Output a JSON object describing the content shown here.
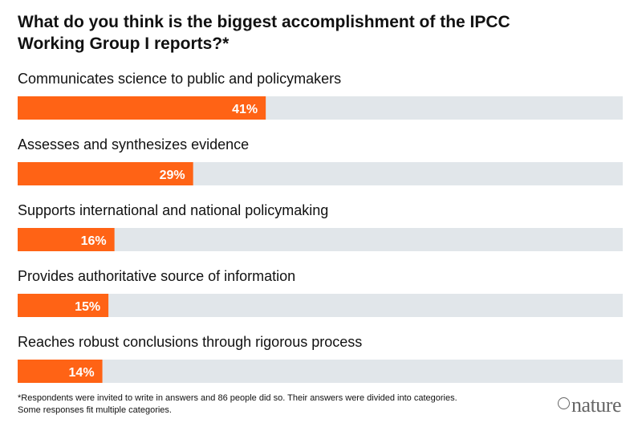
{
  "title": "What do you think is the biggest accomplishment of the IPCC Working Group I reports?*",
  "footnote": "*Respondents were invited to write in answers and 86 people did so. Their answers were divided into categories. Some responses fit multiple categories.",
  "logo_text": "nature",
  "colors": {
    "bar": "#ff6315",
    "track": "#e1e6ea",
    "value_text": "#ffffff",
    "label_text": "#111111"
  },
  "chart_data": {
    "type": "bar",
    "orientation": "horizontal",
    "categories": [
      "Communicates science to public and policymakers",
      "Assesses and synthesizes evidence",
      "Supports international and national policymaking",
      "Provides authoritative source of information",
      "Reaches robust conclusions through rigorous process"
    ],
    "values": [
      41,
      29,
      16,
      15,
      14
    ],
    "value_labels": [
      "41%",
      "29%",
      "16%",
      "15%",
      "14%"
    ],
    "xlim": [
      0,
      100
    ],
    "grid": false,
    "legend": "none"
  }
}
